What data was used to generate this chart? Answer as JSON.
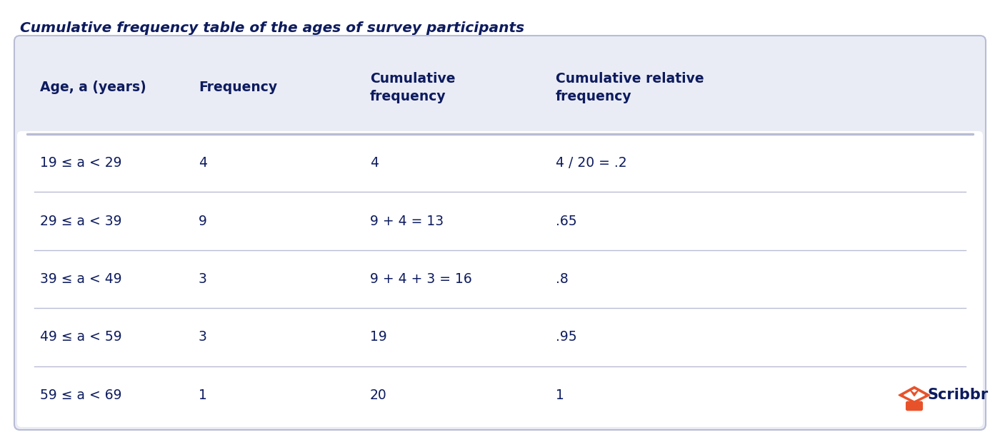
{
  "title": "Cumulative frequency table of the ages of survey participants",
  "title_color": "#0d1b5e",
  "title_fontsize": 14.5,
  "bg_color": "#ffffff",
  "table_bg_color": "#eaecf5",
  "body_bg_color": "#ffffff",
  "border_color": "#b8bcd4",
  "text_color": "#0d1b5e",
  "col_headers": [
    "Age, a (years)",
    "Frequency",
    "Cumulative\nfrequency",
    "Cumulative relative\nfrequency"
  ],
  "rows": [
    [
      "19 ≤ a < 29",
      "4",
      "4",
      "4 / 20 = .2"
    ],
    [
      "29 ≤ a < 39",
      "9",
      "9 + 4 = 13",
      ".65"
    ],
    [
      "39 ≤ a < 49",
      "3",
      "9 + 4 + 3 = 16",
      ".8"
    ],
    [
      "49 ≤ a < 59",
      "3",
      "19",
      ".95"
    ],
    [
      "59 ≤ a < 69",
      "1",
      "20",
      "1"
    ]
  ],
  "scribbr_orange": "#e8522a",
  "scribbr_navy": "#0d1b5e"
}
